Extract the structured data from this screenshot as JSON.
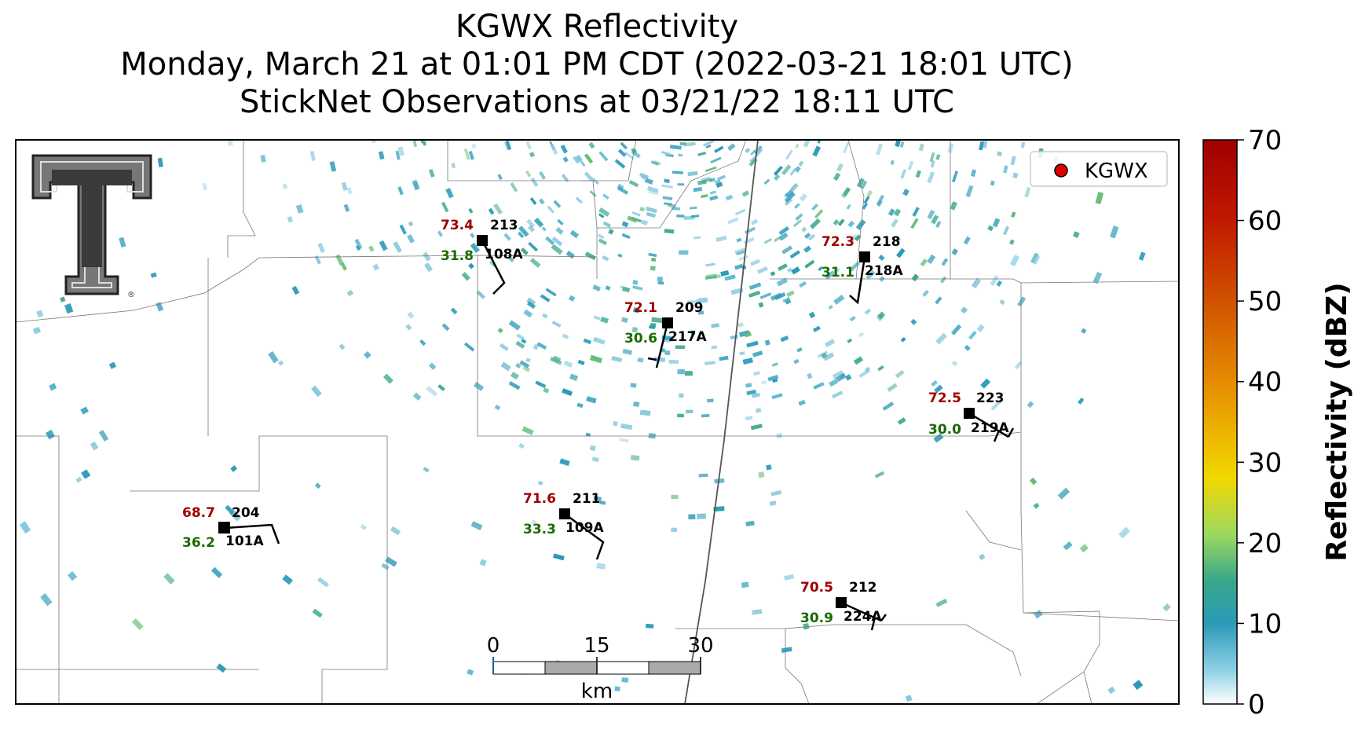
{
  "title": {
    "line1": "KGWX Reflectivity",
    "line2": "Monday, March 21 at 01:01 PM CDT (2022-03-21 18:01 UTC)",
    "line3": "StickNet Observations at 03/21/22 18:11 UTC"
  },
  "legend": {
    "label": "KGWX",
    "marker_color": "#e00000"
  },
  "stations": [
    {
      "id": "213",
      "probe": "108A",
      "temp": "73.4",
      "dew": "31.8"
    },
    {
      "id": "218",
      "probe": "218A",
      "temp": "72.3",
      "dew": "31.1"
    },
    {
      "id": "209",
      "probe": "217A",
      "temp": "72.1",
      "dew": "30.6"
    },
    {
      "id": "223",
      "probe": "219A",
      "temp": "72.5",
      "dew": "30.0"
    },
    {
      "id": "204",
      "probe": "101A",
      "temp": "68.7",
      "dew": "36.2"
    },
    {
      "id": "211",
      "probe": "109A",
      "temp": "71.6",
      "dew": "33.3"
    },
    {
      "id": "212",
      "probe": "224A",
      "temp": "70.5",
      "dew": "30.9"
    }
  ],
  "scale_bar": {
    "ticks": [
      "0",
      "15",
      "30"
    ],
    "unit": "km"
  },
  "colorbar": {
    "label": "Reflectivity (dBZ)",
    "ticks": [
      "0",
      "10",
      "20",
      "30",
      "40",
      "50",
      "60",
      "70"
    ],
    "min": 0,
    "max": 70,
    "colors": [
      "#ffffff",
      "#2a9ab8",
      "#3aa88a",
      "#c8e85a",
      "#f0d000",
      "#e07a00",
      "#c83000",
      "#a00000"
    ]
  },
  "colors": {
    "temp": "#a00000",
    "dew": "#1a6b00",
    "echo_primary": "#2a9ab8",
    "echo_secondary": "#3aa88a"
  },
  "logo_text": "TT"
}
